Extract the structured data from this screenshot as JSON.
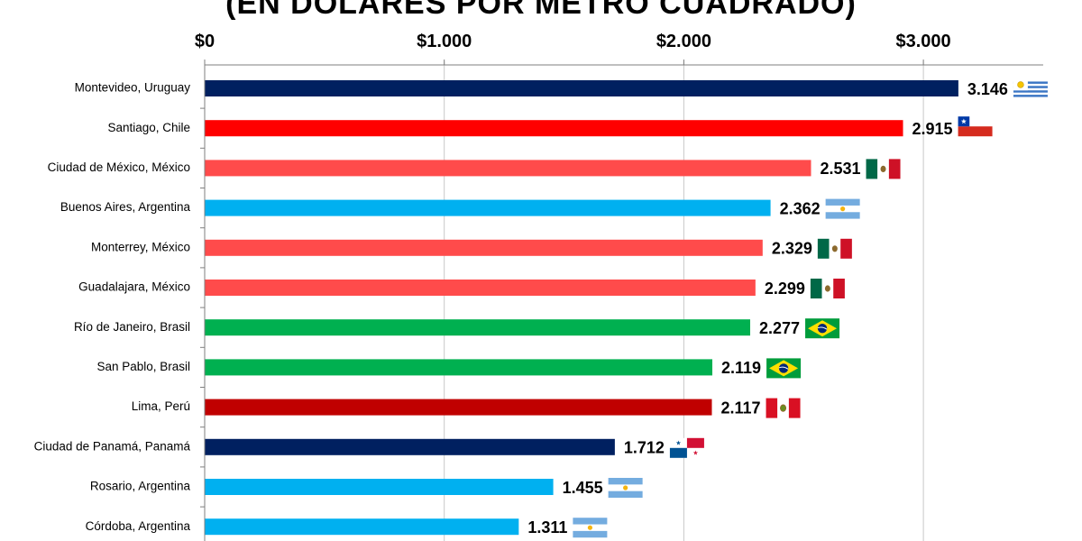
{
  "chart_data": {
    "type": "bar",
    "orientation": "horizontal",
    "title": "(EN DÓLARES POR METRO CUADRADO)",
    "categories": [
      "Montevideo, Uruguay",
      "Santiago, Chile",
      "Ciudad de México, México",
      "Buenos Aires, Argentina",
      "Monterrey, México",
      "Guadalajara, México",
      "Río de Janeiro, Brasil",
      "San Pablo, Brasil",
      "Lima, Perú",
      "Ciudad de Panamá, Panamá",
      "Rosario, Argentina",
      "Córdoba, Argentina"
    ],
    "values": [
      3146,
      2915,
      2531,
      2362,
      2329,
      2299,
      2277,
      2119,
      2117,
      1712,
      1455,
      1311
    ],
    "value_labels": [
      "3.146",
      "2.915",
      "2.531",
      "2.362",
      "2.329",
      "2.299",
      "2.277",
      "2.119",
      "2.117",
      "1.712",
      "1.455",
      "1.311"
    ],
    "countries": [
      "uruguay",
      "chile",
      "mexico",
      "argentina",
      "mexico",
      "mexico",
      "brasil",
      "brasil",
      "peru",
      "panama",
      "argentina",
      "argentina"
    ],
    "bar_colors": [
      "#002060",
      "#ff0000",
      "#ff4b4b",
      "#00b0f0",
      "#ff4b4b",
      "#ff4b4b",
      "#00b050",
      "#00b050",
      "#c00000",
      "#002060",
      "#00b0f0",
      "#00b0f0"
    ],
    "xaxis": {
      "ticks": [
        0,
        1000,
        2000,
        3000
      ],
      "tick_labels": [
        "$0",
        "$1.000",
        "$2.000",
        "$3.000"
      ],
      "xlim": [
        0,
        3500
      ],
      "position": "top"
    },
    "grid": true,
    "legend": "none"
  }
}
